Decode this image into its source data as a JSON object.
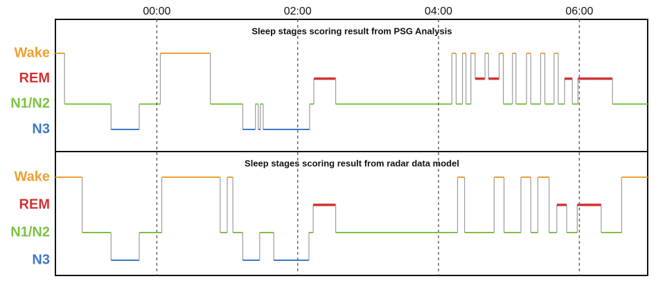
{
  "chart_data": [
    {
      "type": "step",
      "title": "Sleep stages scoring result from PSG Analysis",
      "xlim": [
        -1.44,
        6.97
      ],
      "xticks": [
        {
          "value": 0,
          "label": "00:00"
        },
        {
          "value": 2,
          "label": "02:00"
        },
        {
          "value": 4,
          "label": "04:00"
        },
        {
          "value": 6,
          "label": "06:00"
        }
      ],
      "ylim": [
        0,
        3
      ],
      "yticks": [
        {
          "value": 3,
          "label": "Wake"
        },
        {
          "value": 2,
          "label": "REM"
        },
        {
          "value": 1,
          "label": "N1/N2"
        },
        {
          "value": 0,
          "label": "N3"
        }
      ],
      "level_colors": [
        "#3b78c9",
        "#7cc242",
        "#d03232",
        "#f0a030"
      ],
      "connector_color": "#9a9a9a",
      "x": [
        -1.44,
        -1.31,
        -0.65,
        -0.25,
        0.05,
        0.76,
        1.22,
        1.4,
        1.44,
        1.47,
        1.51,
        2.17,
        2.23,
        2.54,
        4.19,
        4.25,
        4.34,
        4.39,
        4.46,
        4.52,
        4.66,
        4.71,
        4.86,
        4.92,
        5.05,
        5.1,
        5.25,
        5.31,
        5.45,
        5.51,
        5.64,
        5.7,
        5.79,
        5.9,
        5.98,
        6.47,
        6.95
      ],
      "values": [
        3,
        1,
        0,
        1,
        3,
        1,
        0,
        1,
        0,
        1,
        0,
        1,
        2,
        1,
        3,
        1,
        3,
        1,
        3,
        2,
        3,
        2,
        3,
        1,
        3,
        1,
        3,
        1,
        3,
        1,
        3,
        1,
        2,
        1,
        2,
        1,
        1
      ]
    },
    {
      "type": "step",
      "title": "Sleep stages scoring result from radar data model",
      "xlim": [
        -1.44,
        6.97
      ],
      "ylim": [
        0,
        3
      ],
      "yticks": [
        {
          "value": 3,
          "label": "Wake"
        },
        {
          "value": 2,
          "label": "REM"
        },
        {
          "value": 1,
          "label": "N1/N2"
        },
        {
          "value": 0,
          "label": "N3"
        }
      ],
      "level_colors": [
        "#3b78c9",
        "#7cc242",
        "#d03232",
        "#f0a030"
      ],
      "connector_color": "#9a9a9a",
      "x": [
        -1.44,
        -1.06,
        -0.65,
        -0.25,
        0.07,
        0.9,
        1.0,
        1.08,
        1.22,
        1.46,
        1.66,
        2.16,
        2.22,
        2.54,
        4.27,
        4.37,
        4.79,
        4.93,
        5.17,
        5.31,
        5.41,
        5.57,
        5.68,
        5.82,
        5.97,
        6.31,
        6.6,
        6.95
      ],
      "values": [
        3,
        1,
        0,
        1,
        3,
        1,
        3,
        1,
        0,
        1,
        0,
        1,
        2,
        1,
        3,
        1,
        3,
        1,
        3,
        1,
        3,
        1,
        2,
        1,
        2,
        1,
        3,
        3
      ]
    }
  ]
}
